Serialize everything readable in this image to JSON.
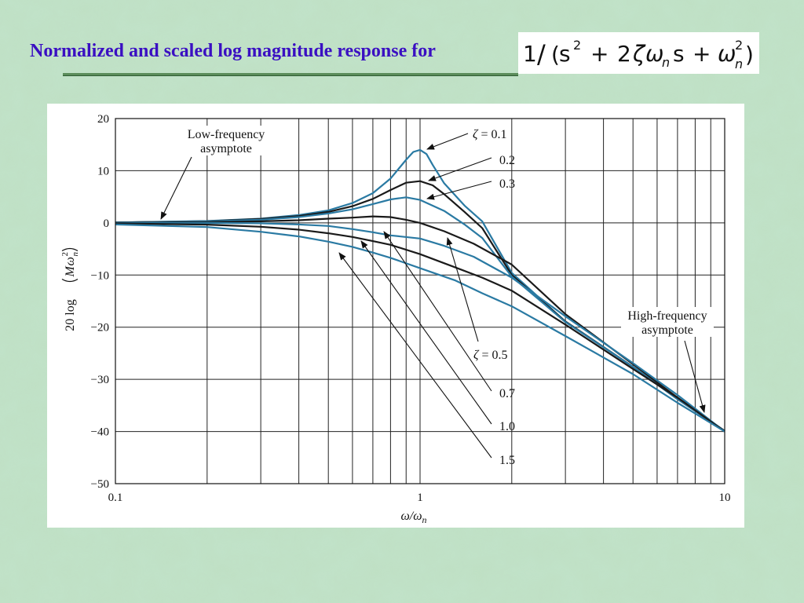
{
  "slide": {
    "title": "Normalized and scaled log magnitude response for",
    "formula": {
      "numerator": "1",
      "operator": "/",
      "open_paren": "(",
      "s": "s",
      "exp": "2",
      "plus": "+",
      "coeff": "2",
      "zeta": "ζ",
      "omega": "ω",
      "sub_n": "n",
      "close_paren": ")"
    }
  },
  "chart_data": {
    "type": "line",
    "xscale": "log",
    "xlim": [
      0.1,
      10
    ],
    "ylim": [
      -50,
      20
    ],
    "grid": true,
    "xlabel": {
      "main": "ω/ω",
      "sub": "n"
    },
    "ylabel": {
      "prefix": "20 log",
      "M": "M",
      "omega": "ω",
      "sup": "2",
      "sub": "n"
    },
    "x_ticks": [
      {
        "value": 0.1,
        "label": "0.1"
      },
      {
        "value": 1,
        "label": "1"
      },
      {
        "value": 10,
        "label": "10"
      }
    ],
    "y_ticks": [
      {
        "value": 20,
        "label": "20"
      },
      {
        "value": 10,
        "label": "10"
      },
      {
        "value": 0,
        "label": "0"
      },
      {
        "value": -10,
        "label": "−10"
      },
      {
        "value": -20,
        "label": "−20"
      },
      {
        "value": -30,
        "label": "−30"
      },
      {
        "value": -40,
        "label": "−40"
      },
      {
        "value": -50,
        "label": "−50"
      }
    ],
    "series": [
      {
        "zeta": 0.1,
        "color": "#2a7aa3",
        "points": [
          [
            0.1,
            0.09
          ],
          [
            0.2,
            0.35
          ],
          [
            0.3,
            0.8
          ],
          [
            0.4,
            1.5
          ],
          [
            0.5,
            2.4
          ],
          [
            0.6,
            3.8
          ],
          [
            0.7,
            5.7
          ],
          [
            0.8,
            8.5
          ],
          [
            0.9,
            12.1
          ],
          [
            0.95,
            13.6
          ],
          [
            1.0,
            14.0
          ],
          [
            1.05,
            13.2
          ],
          [
            1.1,
            11.1
          ],
          [
            1.2,
            7.6
          ],
          [
            1.4,
            3.3
          ],
          [
            1.6,
            0.3
          ],
          [
            2.0,
            -9.6
          ],
          [
            3.0,
            -18.9
          ],
          [
            5.0,
            -27.6
          ],
          [
            7.0,
            -33.7
          ],
          [
            10.0,
            -39.9
          ]
        ]
      },
      {
        "zeta": 0.2,
        "color": "#1a1a1a",
        "points": [
          [
            0.1,
            0.08
          ],
          [
            0.2,
            0.33
          ],
          [
            0.3,
            0.75
          ],
          [
            0.4,
            1.3
          ],
          [
            0.5,
            2.1
          ],
          [
            0.6,
            3.2
          ],
          [
            0.7,
            4.6
          ],
          [
            0.8,
            6.3
          ],
          [
            0.9,
            7.7
          ],
          [
            1.0,
            8.0
          ],
          [
            1.1,
            7.2
          ],
          [
            1.2,
            5.5
          ],
          [
            1.4,
            2.1
          ],
          [
            1.6,
            -1.0
          ],
          [
            2.0,
            -10.0
          ],
          [
            3.0,
            -18.9
          ],
          [
            5.0,
            -27.6
          ],
          [
            7.0,
            -33.8
          ],
          [
            10.0,
            -39.9
          ]
        ]
      },
      {
        "zeta": 0.3,
        "color": "#2a7aa3",
        "points": [
          [
            0.1,
            0.07
          ],
          [
            0.2,
            0.28
          ],
          [
            0.3,
            0.6
          ],
          [
            0.4,
            1.1
          ],
          [
            0.5,
            1.8
          ],
          [
            0.6,
            2.6
          ],
          [
            0.7,
            3.6
          ],
          [
            0.8,
            4.5
          ],
          [
            0.9,
            4.9
          ],
          [
            1.0,
            4.4
          ],
          [
            1.2,
            2.3
          ],
          [
            1.4,
            -0.3
          ],
          [
            1.6,
            -2.9
          ],
          [
            2.0,
            -10.3
          ],
          [
            3.0,
            -19.0
          ],
          [
            5.0,
            -27.6
          ],
          [
            7.0,
            -33.8
          ],
          [
            10.0,
            -39.9
          ]
        ]
      },
      {
        "zeta": 0.5,
        "color": "#1a1a1a",
        "points": [
          [
            0.1,
            0.04
          ],
          [
            0.2,
            0.13
          ],
          [
            0.3,
            0.3
          ],
          [
            0.4,
            0.5
          ],
          [
            0.5,
            0.8
          ],
          [
            0.6,
            1.0
          ],
          [
            0.7,
            1.25
          ],
          [
            0.8,
            1.1
          ],
          [
            0.9,
            0.6
          ],
          [
            1.0,
            0.0
          ],
          [
            1.2,
            -1.6
          ],
          [
            1.5,
            -4.0
          ],
          [
            2.0,
            -8.0
          ],
          [
            3.0,
            -17.5
          ],
          [
            5.0,
            -27.1
          ],
          [
            7.0,
            -33.5
          ],
          [
            10.0,
            -39.9
          ]
        ]
      },
      {
        "zeta": 0.7,
        "color": "#2a7aa3",
        "points": [
          [
            0.1,
            0.0
          ],
          [
            0.2,
            -0.02
          ],
          [
            0.3,
            -0.08
          ],
          [
            0.4,
            -0.3
          ],
          [
            0.5,
            -0.6
          ],
          [
            0.6,
            -1.2
          ],
          [
            0.7,
            -1.8
          ],
          [
            0.8,
            -2.4
          ],
          [
            1.0,
            -3.0
          ],
          [
            1.2,
            -4.4
          ],
          [
            1.5,
            -6.5
          ],
          [
            2.0,
            -10.5
          ],
          [
            3.0,
            -17.9
          ],
          [
            5.0,
            -26.9
          ],
          [
            7.0,
            -33.0
          ],
          [
            10.0,
            -40.0
          ]
        ]
      },
      {
        "zeta": 1.0,
        "color": "#1a1a1a",
        "points": [
          [
            0.1,
            -0.09
          ],
          [
            0.2,
            -0.34
          ],
          [
            0.3,
            -0.75
          ],
          [
            0.4,
            -1.3
          ],
          [
            0.5,
            -2.0
          ],
          [
            0.6,
            -2.7
          ],
          [
            0.7,
            -3.5
          ],
          [
            0.8,
            -4.2
          ],
          [
            1.0,
            -6.0
          ],
          [
            1.3,
            -8.5
          ],
          [
            1.6,
            -10.5
          ],
          [
            2.0,
            -13.0
          ],
          [
            3.0,
            -19.5
          ],
          [
            5.0,
            -28.0
          ],
          [
            7.0,
            -33.5
          ],
          [
            10.0,
            -40.0
          ]
        ]
      },
      {
        "zeta": 1.5,
        "color": "#2a7aa3",
        "points": [
          [
            0.1,
            -0.3
          ],
          [
            0.2,
            -0.8
          ],
          [
            0.3,
            -1.7
          ],
          [
            0.4,
            -2.6
          ],
          [
            0.5,
            -3.6
          ],
          [
            0.6,
            -4.6
          ],
          [
            0.7,
            -5.7
          ],
          [
            0.8,
            -6.7
          ],
          [
            1.0,
            -8.7
          ],
          [
            1.3,
            -11.0
          ],
          [
            1.6,
            -13.5
          ],
          [
            2.0,
            -16.0
          ],
          [
            3.0,
            -21.7
          ],
          [
            5.0,
            -29.0
          ],
          [
            7.0,
            -34.5
          ],
          [
            10.0,
            -40.0
          ]
        ]
      }
    ],
    "annotations": {
      "low_freq": {
        "lines": [
          "Low-frequency",
          "asymptote"
        ]
      },
      "high_freq": {
        "lines": [
          "High-frequency",
          "asymptote"
        ]
      },
      "zeta_symbol": "ζ",
      "zeta_eq": "= ",
      "top_labels": [
        "0.1",
        "0.2",
        "0.3"
      ],
      "bottom_labels": [
        "0.5",
        "0.7",
        "1.0",
        "1.5"
      ]
    }
  }
}
